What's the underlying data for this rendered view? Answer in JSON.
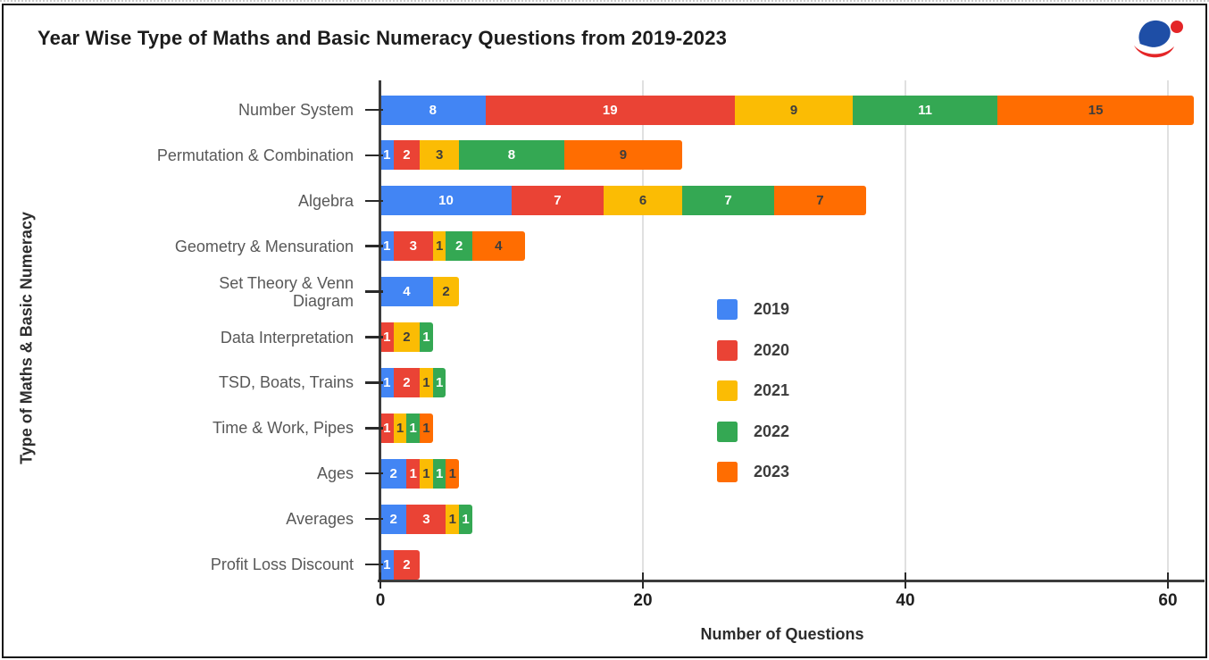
{
  "page": {
    "title": "Year Wise Type of Maths and Basic Numeracy Questions from 2019-2023",
    "logo": "brand-logo-blue-swoosh-red-dot",
    "logo_colors": {
      "blue": "#1e4ea6",
      "red": "#e42527"
    }
  },
  "chart_data": {
    "type": "bar",
    "orientation": "horizontal",
    "stacked": true,
    "grid": true,
    "title": "Year Wise Type of Maths and Basic Numeracy Questions from 2019-2023",
    "xlabel": "Number of Questions",
    "ylabel": "Type of Maths & Basic Numeracy",
    "xlim": [
      0,
      62
    ],
    "xticks": [
      0,
      20,
      40,
      60
    ],
    "legend_position": "middle-right-inside",
    "categories": [
      "Number System",
      "Permutation & Combination",
      "Algebra",
      "Geometry & Mensuration",
      "Set Theory & Venn\nDiagram",
      "Data Interpretation",
      "TSD, Boats, Trains",
      "Time & Work, Pipes",
      "Ages",
      "Averages",
      "Profit Loss Discount"
    ],
    "series": [
      {
        "name": "2019",
        "color": "#4285F4",
        "label_color": "#ffffff",
        "values": [
          8,
          1,
          10,
          1,
          4,
          0,
          1,
          0,
          2,
          2,
          1
        ]
      },
      {
        "name": "2020",
        "color": "#EA4335",
        "label_color": "#ffffff",
        "values": [
          19,
          2,
          7,
          3,
          0,
          1,
          2,
          1,
          1,
          3,
          2
        ]
      },
      {
        "name": "2021",
        "color": "#FBBC04",
        "label_color": "#3d3d3d",
        "values": [
          9,
          3,
          6,
          1,
          2,
          2,
          1,
          1,
          1,
          1,
          0
        ]
      },
      {
        "name": "2022",
        "color": "#34A853",
        "label_color": "#ffffff",
        "values": [
          11,
          8,
          7,
          2,
          0,
          1,
          1,
          1,
          1,
          1,
          0
        ]
      },
      {
        "name": "2023",
        "color": "#FF6D01",
        "label_color": "#3d3d3d",
        "values": [
          15,
          9,
          7,
          4,
          0,
          0,
          0,
          1,
          1,
          0,
          0
        ]
      }
    ],
    "totals": [
      62,
      23,
      37,
      11,
      6,
      4,
      5,
      4,
      6,
      7,
      3
    ]
  }
}
